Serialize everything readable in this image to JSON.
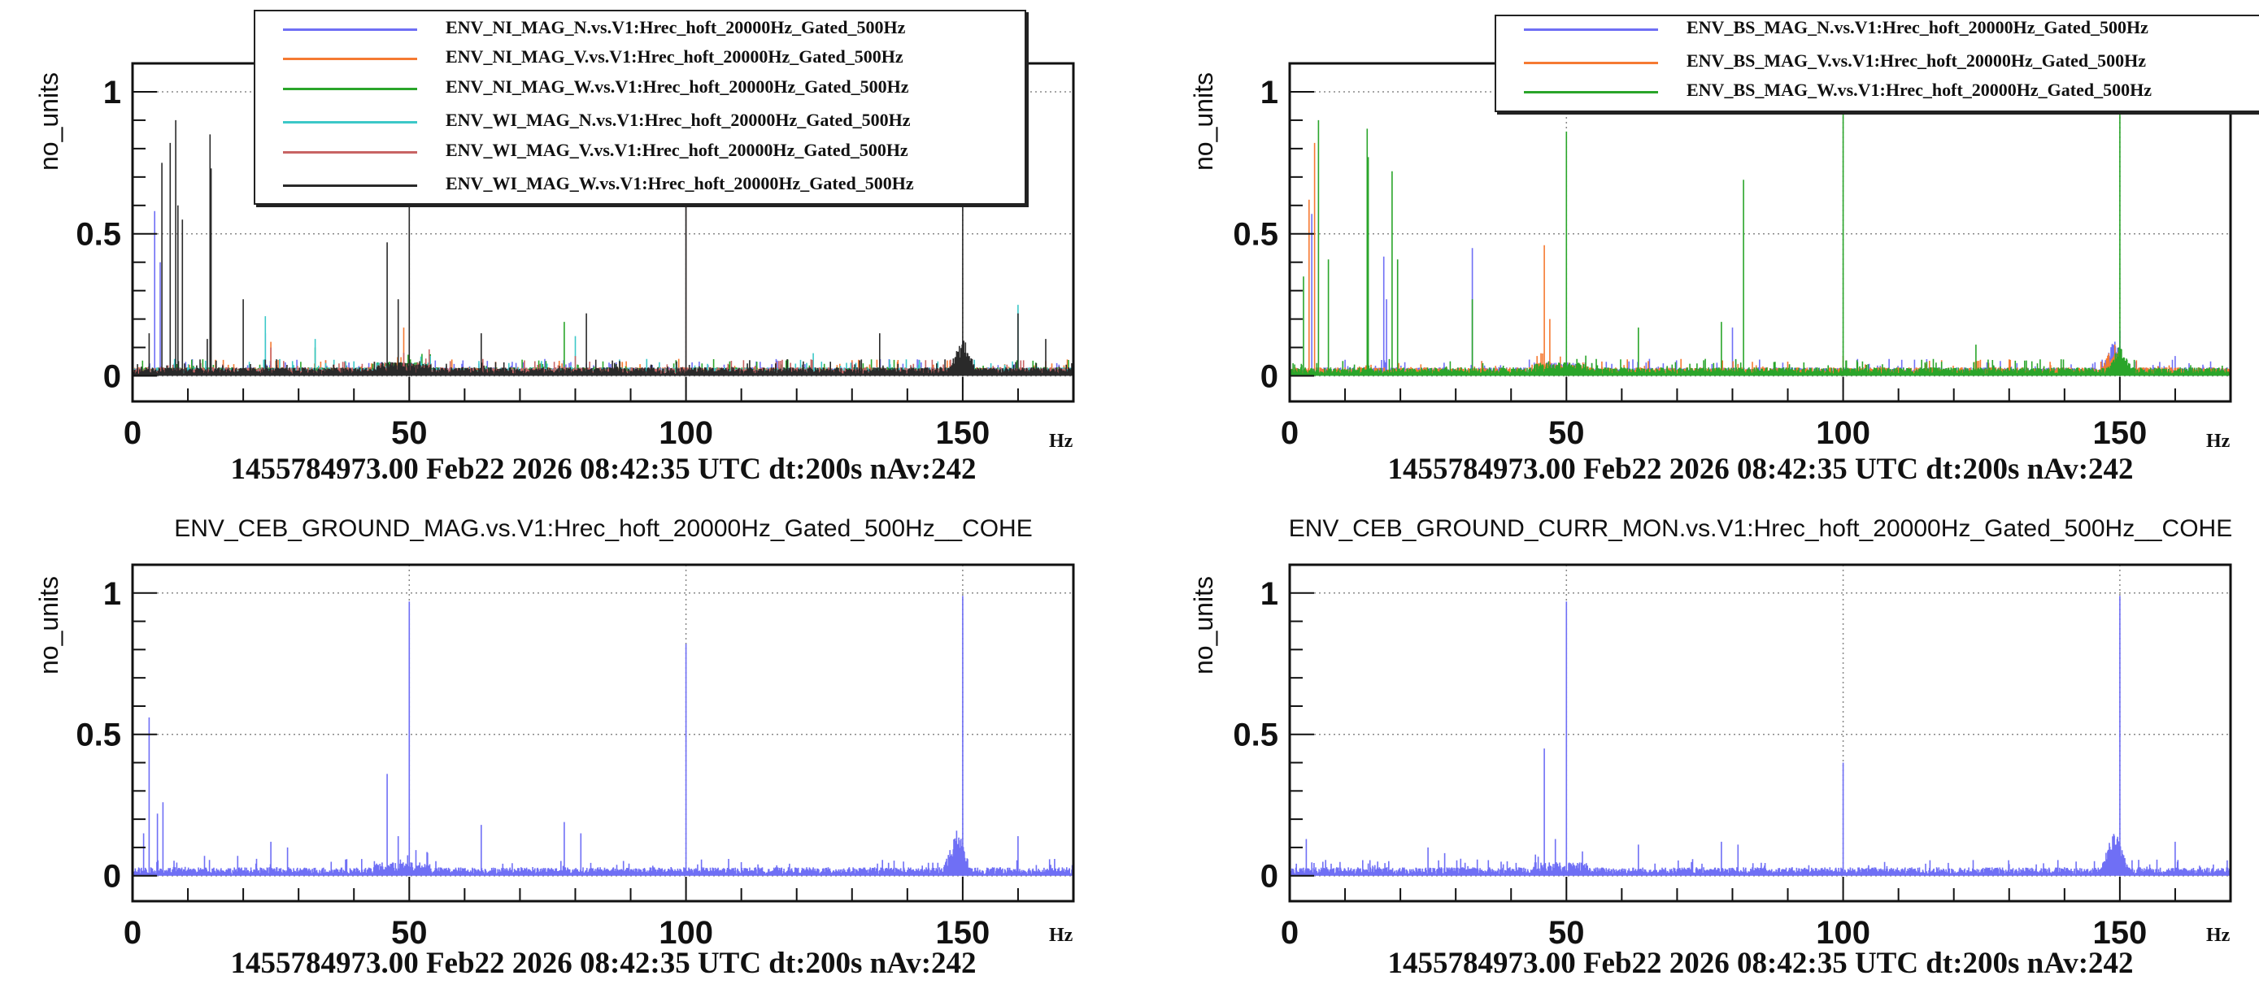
{
  "colors": {
    "blue": "#6f6ff5",
    "orange": "#f57a32",
    "green": "#2aa52a",
    "cyan": "#3cc8c8",
    "red": "#c86464",
    "black": "#2a2a2a"
  },
  "chart_data": [
    {
      "type": "line",
      "title": "1455784973.00 Feb22 2026 08:42:35 UTC dt:200s nAv:242",
      "heading": "",
      "xlabel": "Hz",
      "ylabel": "no_units",
      "xlim": [
        0,
        170
      ],
      "ylim": [
        -0.09,
        1.1
      ],
      "xticks": [
        "0",
        "50",
        "100",
        "150"
      ],
      "yticks": [
        "0",
        "0.5",
        "1"
      ],
      "grid": true,
      "legend": "top-center",
      "noise": 0.02,
      "series": [
        {
          "name": "ENV_NI_MAG_N.vs.V1:Hrec_hoft_20000Hz_Gated_500Hz",
          "color": "blue",
          "peaks": [
            [
              4,
              0.58
            ],
            [
              5,
              0.4
            ],
            [
              24,
              0.15
            ],
            [
              150,
              0.12
            ]
          ]
        },
        {
          "name": "ENV_NI_MAG_V.vs.V1:Hrec_hoft_20000Hz_Gated_500Hz",
          "color": "orange",
          "peaks": [
            [
              25,
              0.12
            ],
            [
              49,
              0.17
            ],
            [
              150,
              0.11
            ]
          ]
        },
        {
          "name": "ENV_NI_MAG_W.vs.V1:Hrec_hoft_20000Hz_Gated_500Hz",
          "color": "green",
          "peaks": [
            [
              33,
              0.1
            ],
            [
              78,
              0.19
            ],
            [
              150,
              0.05
            ]
          ]
        },
        {
          "name": "ENV_WI_MAG_N.vs.V1:Hrec_hoft_20000Hz_Gated_500Hz",
          "color": "cyan",
          "peaks": [
            [
              24,
              0.21
            ],
            [
              33,
              0.13
            ],
            [
              80,
              0.14
            ],
            [
              100,
              0.95
            ],
            [
              123,
              0.08
            ],
            [
              160,
              0.25
            ]
          ]
        },
        {
          "name": "ENV_WI_MAG_V.vs.V1:Hrec_hoft_20000Hz_Gated_500Hz",
          "color": "red",
          "peaks": [
            [
              25,
              0.1
            ],
            [
              80,
              0.07
            ],
            [
              100,
              0.85
            ]
          ]
        },
        {
          "name": "ENV_WI_MAG_W.vs.V1:Hrec_hoft_20000Hz_Gated_500Hz",
          "color": "black",
          "peaks": [
            [
              3,
              0.15
            ],
            [
              5.3,
              0.75
            ],
            [
              6.8,
              0.82
            ],
            [
              7.8,
              0.9
            ],
            [
              8.2,
              0.6
            ],
            [
              9,
              0.55
            ],
            [
              13.5,
              0.13
            ],
            [
              14,
              0.85
            ],
            [
              14.2,
              0.73
            ],
            [
              20,
              0.27
            ],
            [
              46,
              0.47
            ],
            [
              48,
              0.27
            ],
            [
              50,
              0.97
            ],
            [
              63,
              0.15
            ],
            [
              82,
              0.22
            ],
            [
              100,
              0.95
            ],
            [
              135,
              0.15
            ],
            [
              150,
              0.99
            ],
            [
              160,
              0.22
            ],
            [
              165,
              0.13
            ]
          ],
          "bump": [
            150,
            0.13
          ]
        }
      ]
    },
    {
      "type": "line",
      "title": "1455784973.00 Feb22 2026 08:42:35 UTC dt:200s nAv:242",
      "heading": "",
      "xlabel": "Hz",
      "ylabel": "no_units",
      "xlim": [
        0,
        170
      ],
      "ylim": [
        -0.09,
        1.1
      ],
      "xticks": [
        "0",
        "50",
        "100",
        "150"
      ],
      "yticks": [
        "0",
        "0.5",
        "1"
      ],
      "grid": true,
      "legend": "top-right",
      "noise": 0.02,
      "series": [
        {
          "name": "ENV_BS_MAG_N.vs.V1:Hrec_hoft_20000Hz_Gated_500Hz",
          "color": "blue",
          "peaks": [
            [
              4,
              0.57
            ],
            [
              17,
              0.42
            ],
            [
              17.5,
              0.27
            ],
            [
              33,
              0.45
            ],
            [
              65,
              0.06
            ],
            [
              80,
              0.17
            ],
            [
              150,
              0.16
            ],
            [
              160,
              0.07
            ]
          ],
          "bump": [
            149,
            0.12
          ]
        },
        {
          "name": "ENV_BS_MAG_V.vs.V1:Hrec_hoft_20000Hz_Gated_500Hz",
          "color": "orange",
          "peaks": [
            [
              3.5,
              0.62
            ],
            [
              4.5,
              0.82
            ],
            [
              46,
              0.46
            ],
            [
              47,
              0.2
            ],
            [
              100,
              0.07
            ]
          ],
          "bump": [
            149,
            0.11
          ]
        },
        {
          "name": "ENV_BS_MAG_W.vs.V1:Hrec_hoft_20000Hz_Gated_500Hz",
          "color": "green",
          "peaks": [
            [
              2.5,
              0.35
            ],
            [
              5.2,
              0.9
            ],
            [
              7,
              0.41
            ],
            [
              14,
              0.87
            ],
            [
              14.2,
              0.77
            ],
            [
              18.5,
              0.72
            ],
            [
              19.5,
              0.41
            ],
            [
              33,
              0.27
            ],
            [
              50,
              0.86
            ],
            [
              63,
              0.17
            ],
            [
              78,
              0.19
            ],
            [
              82,
              0.69
            ],
            [
              100,
              0.97
            ],
            [
              124,
              0.11
            ],
            [
              150,
              0.99
            ]
          ],
          "bump": [
            150,
            0.1
          ]
        }
      ]
    },
    {
      "type": "line",
      "title": "1455784973.00 Feb22 2026 08:42:35 UTC dt:200s nAv:242",
      "heading": "ENV_CEB_GROUND_MAG.vs.V1:Hrec_hoft_20000Hz_Gated_500Hz__COHE",
      "xlabel": "Hz",
      "ylabel": "no_units",
      "xlim": [
        0,
        170
      ],
      "ylim": [
        -0.09,
        1.1
      ],
      "xticks": [
        "0",
        "50",
        "100",
        "150"
      ],
      "yticks": [
        "0",
        "0.5",
        "1"
      ],
      "grid": true,
      "legend": "none",
      "noise": 0.02,
      "series": [
        {
          "name": "ENV_CEB_GROUND_MAG.vs.V1:Hrec_hoft_20000Hz_Gated_500Hz__COHE",
          "color": "blue",
          "peaks": [
            [
              2,
              0.15
            ],
            [
              3,
              0.56
            ],
            [
              4.5,
              0.22
            ],
            [
              5.5,
              0.26
            ],
            [
              13,
              0.07
            ],
            [
              19,
              0.07
            ],
            [
              25,
              0.12
            ],
            [
              28,
              0.1
            ],
            [
              46,
              0.36
            ],
            [
              48,
              0.14
            ],
            [
              50,
              0.97
            ],
            [
              63,
              0.18
            ],
            [
              78,
              0.19
            ],
            [
              81,
              0.15
            ],
            [
              100,
              0.82
            ],
            [
              150,
              0.99
            ],
            [
              160,
              0.14
            ]
          ],
          "bump": [
            149,
            0.16
          ]
        }
      ]
    },
    {
      "type": "line",
      "title": "1455784973.00 Feb22 2026 08:42:35 UTC dt:200s nAv:242",
      "heading": "ENV_CEB_GROUND_CURR_MON.vs.V1:Hrec_hoft_20000Hz_Gated_500Hz__COHE",
      "xlabel": "Hz",
      "ylabel": "no_units",
      "xlim": [
        0,
        170
      ],
      "ylim": [
        -0.09,
        1.1
      ],
      "xticks": [
        "0",
        "50",
        "100",
        "150"
      ],
      "yticks": [
        "0",
        "0.5",
        "1"
      ],
      "grid": true,
      "legend": "none",
      "noise": 0.02,
      "series": [
        {
          "name": "ENV_CEB_GROUND_CURR_MON.vs.V1:Hrec_hoft_20000Hz_Gated_500Hz__COHE",
          "color": "blue",
          "peaks": [
            [
              3,
              0.13
            ],
            [
              25,
              0.1
            ],
            [
              28,
              0.08
            ],
            [
              46,
              0.45
            ],
            [
              48,
              0.13
            ],
            [
              50,
              0.97
            ],
            [
              63,
              0.11
            ],
            [
              78,
              0.12
            ],
            [
              81,
              0.11
            ],
            [
              100,
              0.4
            ],
            [
              150,
              0.99
            ],
            [
              160,
              0.12
            ]
          ],
          "bump": [
            149,
            0.16
          ]
        }
      ]
    }
  ]
}
